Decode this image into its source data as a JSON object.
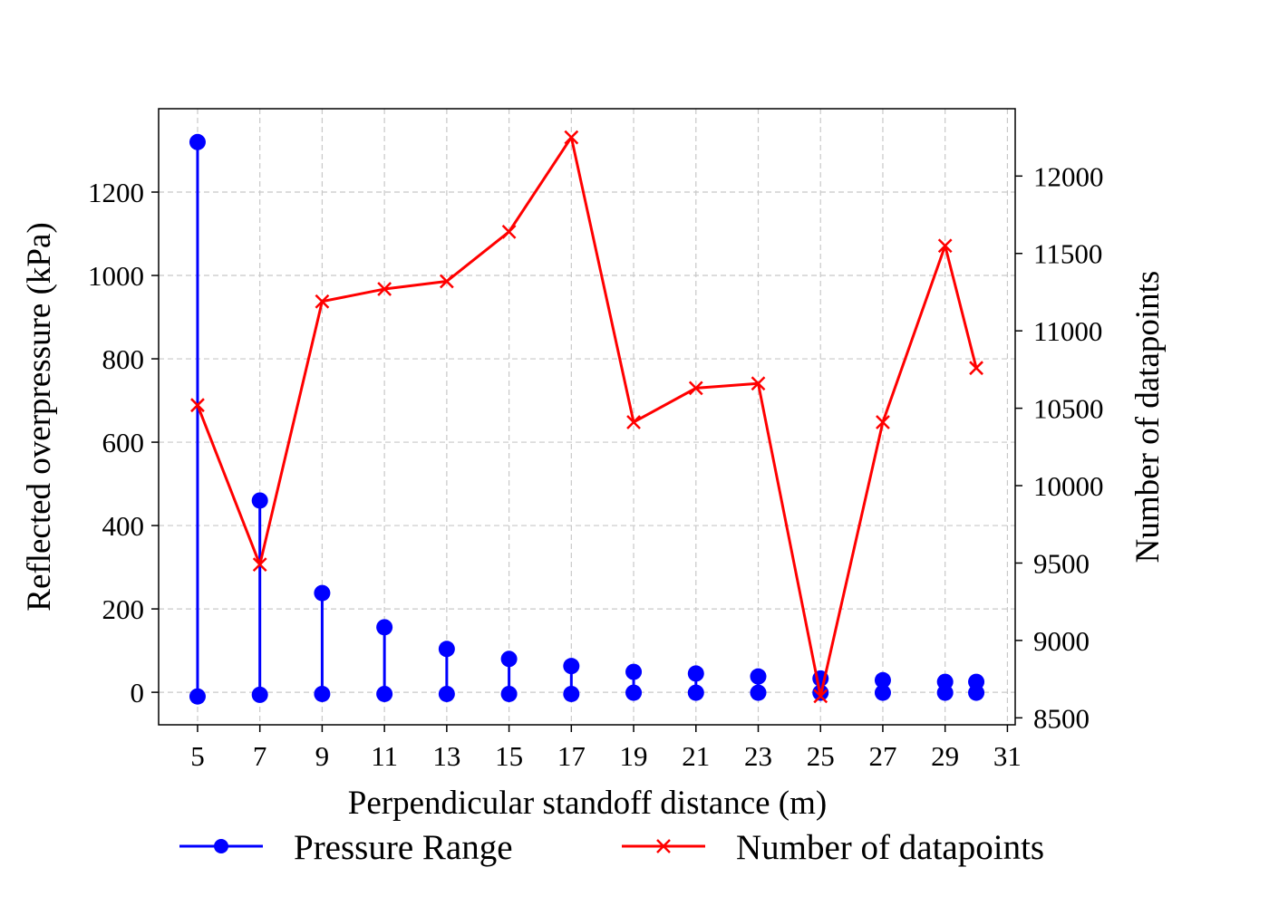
{
  "chart_data": {
    "type": "line",
    "xlabel": "Perpendicular standoff distance (m)",
    "ylabel_left": "Reflected overpressure (kPa)",
    "ylabel_right": "Number of datapoints",
    "x_ticks": [
      5,
      7,
      9,
      11,
      13,
      15,
      17,
      19,
      21,
      23,
      25,
      27,
      29,
      31
    ],
    "y_left_ticks": [
      0,
      200,
      400,
      600,
      800,
      1000,
      1200
    ],
    "y_right_ticks": [
      8500,
      9000,
      9500,
      10000,
      10500,
      11000,
      11500,
      12000
    ],
    "xlim": [
      3.75,
      31.25
    ],
    "ylim_left": [
      -78,
      1400
    ],
    "ylim_right": [
      8455,
      12435
    ],
    "grid": true,
    "grid_style": "dashed",
    "legend_position": "bottom-center-outside",
    "series": [
      {
        "name": "Pressure Range",
        "axis": "left",
        "color": "#0000ff",
        "marker": "circle",
        "style": "vertical range",
        "x": [
          5,
          7,
          9,
          11,
          13,
          15,
          17,
          19,
          21,
          23,
          25,
          27,
          29,
          30
        ],
        "min": [
          -10,
          -6,
          -4,
          -4,
          -4,
          -4,
          -4,
          -1,
          -1,
          -1,
          -1,
          -1,
          -1,
          -1
        ],
        "max": [
          1320,
          460,
          238,
          156,
          104,
          80,
          63,
          49,
          45,
          38,
          33,
          29,
          25,
          25
        ]
      },
      {
        "name": "Number of datapoints",
        "axis": "right",
        "color": "#ff0000",
        "marker": "x",
        "x": [
          5,
          7,
          9,
          11,
          13,
          15,
          17,
          19,
          21,
          23,
          25,
          27,
          29,
          30
        ],
        "values": [
          10520,
          9490,
          11190,
          11270,
          11320,
          11640,
          12250,
          10410,
          10630,
          10660,
          8640,
          10410,
          11550,
          10760
        ]
      }
    ]
  }
}
